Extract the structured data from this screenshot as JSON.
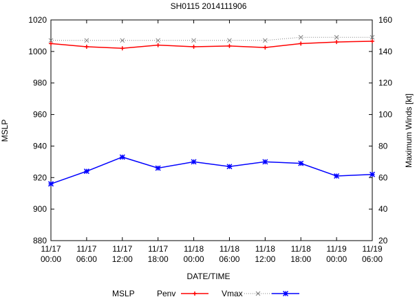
{
  "chart_data": {
    "type": "line",
    "title": "SH0115 2014111906",
    "xlabel": "DATE/TIME",
    "ylabel_left": "MSLP",
    "ylabel_right": "Maximum Winds [kt]",
    "ylim_left": [
      880,
      1020
    ],
    "yticks_left": [
      880,
      900,
      920,
      940,
      960,
      980,
      1000,
      1020
    ],
    "ylim_right": [
      20,
      160
    ],
    "yticks_right": [
      20,
      40,
      60,
      80,
      100,
      120,
      140,
      160
    ],
    "categories": [
      [
        "11/17",
        "00:00"
      ],
      [
        "11/17",
        "06:00"
      ],
      [
        "11/17",
        "12:00"
      ],
      [
        "11/17",
        "18:00"
      ],
      [
        "11/18",
        "00:00"
      ],
      [
        "11/18",
        "06:00"
      ],
      [
        "11/18",
        "12:00"
      ],
      [
        "11/18",
        "18:00"
      ],
      [
        "11/19",
        "00:00"
      ],
      [
        "11/19",
        "06:00"
      ]
    ],
    "grid": false,
    "legend_position": "bottom",
    "legend_label": "MSLP",
    "series": [
      {
        "name": "Penv",
        "axis": "left",
        "color": "#ff0000",
        "marker": "plus",
        "style": "solid",
        "values": [
          1005,
          1003,
          1002,
          1004,
          1003,
          1003.5,
          1002.5,
          1005,
          1006,
          1006.5
        ]
      },
      {
        "name": "Vmax",
        "axis": "right",
        "color": "#808080",
        "marker": "cross",
        "style": "dotted",
        "values": [
          147,
          147,
          147,
          147,
          147,
          147,
          147,
          149,
          149,
          149
        ]
      },
      {
        "name": "",
        "axis": "left",
        "color": "#0000ff",
        "marker": "star",
        "style": "solid",
        "values": [
          916,
          924,
          933,
          926,
          930,
          927,
          930,
          929,
          921,
          922
        ]
      }
    ]
  }
}
